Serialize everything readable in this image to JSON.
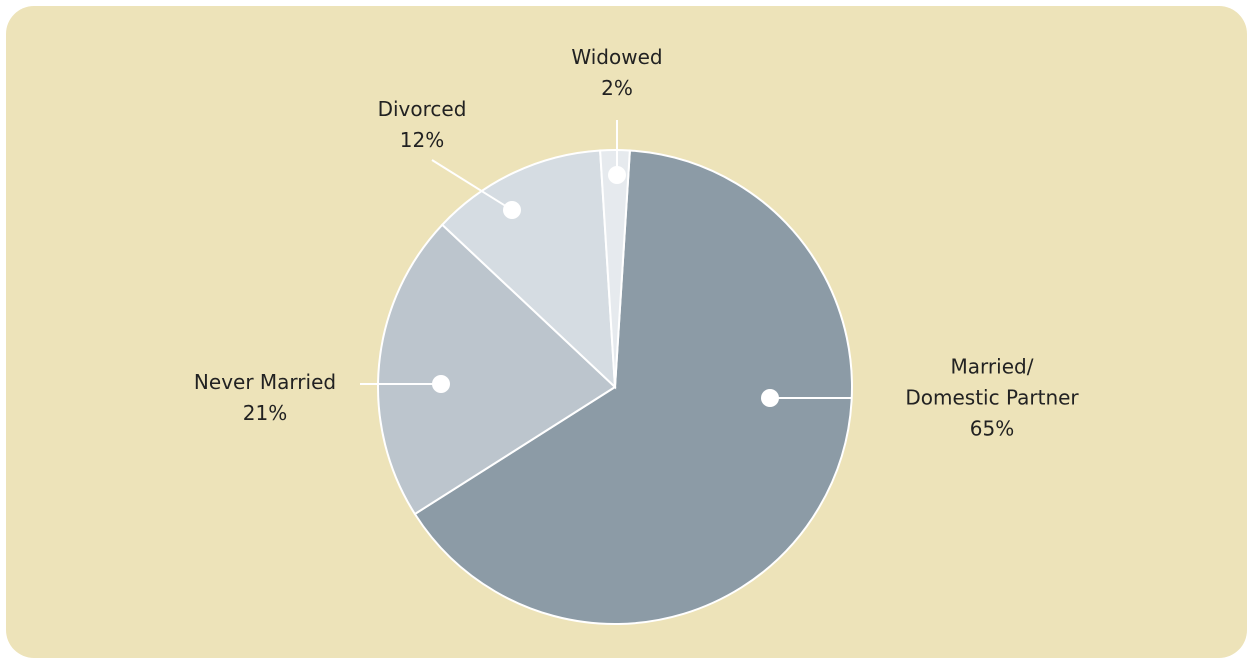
{
  "chart_data": {
    "type": "pie",
    "categories": [
      "Married/\nDomestic Partner",
      "Never Married",
      "Divorced",
      "Widowed"
    ],
    "values": [
      65,
      21,
      12,
      2
    ],
    "value_labels": [
      "65%",
      "21%",
      "12%",
      "2%"
    ],
    "colors": [
      "#8c9ba6",
      "#bcc5cd",
      "#d5dce2",
      "#e6eaee"
    ]
  }
}
